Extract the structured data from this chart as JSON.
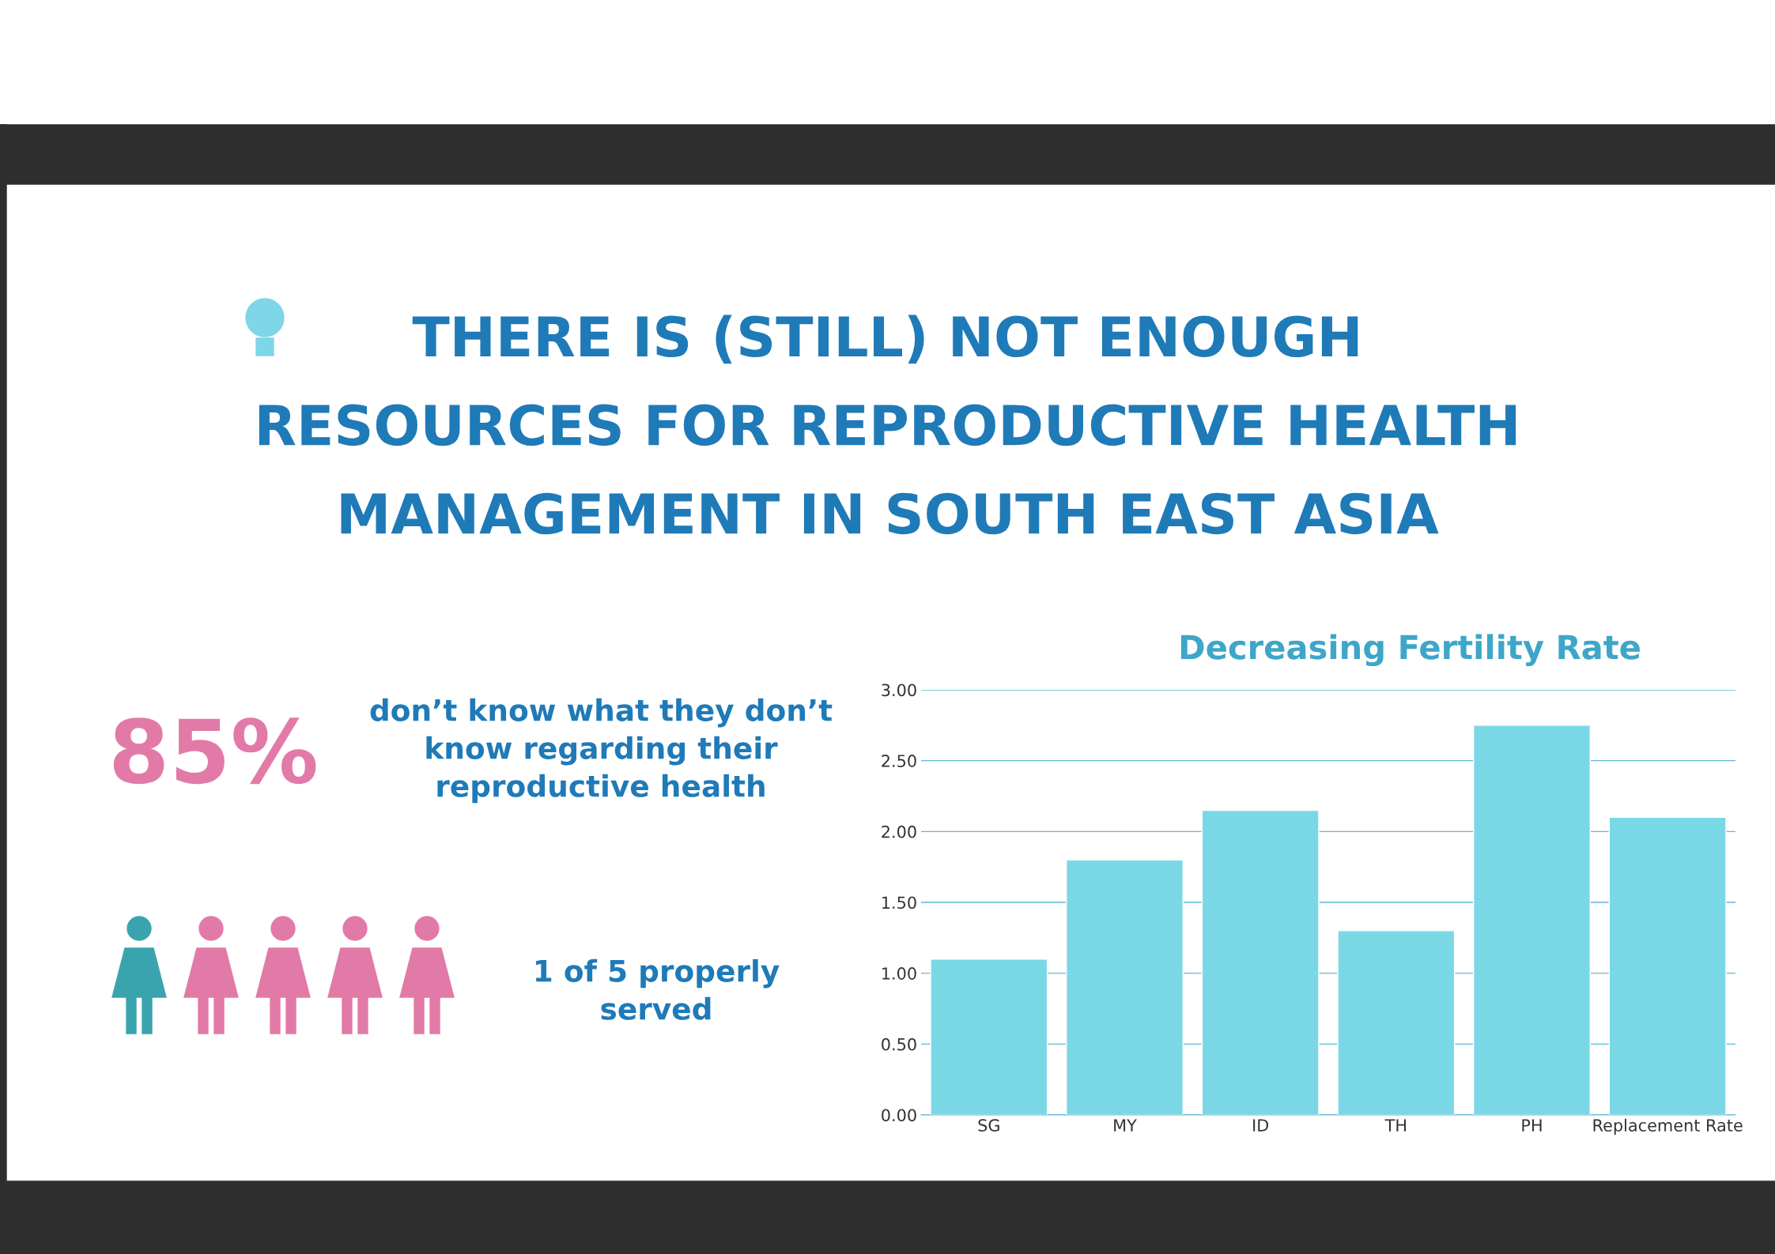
{
  "chart_data": [
    {
      "type": "other",
      "title": "THERE IS (STILL) NOT ENOUGH\nRESOURCES FOR REPRODUCTIVE HEALTH\nMANAGEMENT IN SOUTH EAST ASIA",
      "annotations": [
        "85%",
        "don’t know what they don’t\nknow regarding their\nreproductive health",
        "1 of 5 properly\nserved"
      ]
    },
    {
      "type": "bar",
      "title": "Decreasing Fertility Rate",
      "categories": [
        "SG",
        "MY",
        "ID",
        "TH",
        "PH",
        "Replacement Rate"
      ],
      "values": [
        1.1,
        1.8,
        2.15,
        1.3,
        2.75,
        2.1
      ],
      "color": "#7ad8e6",
      "ylim": [
        0,
        3
      ],
      "yticks": [
        {
          "value": 0,
          "label": "0.00"
        },
        {
          "value": 0.5,
          "label": "0.50"
        },
        {
          "value": 1,
          "label": "1.00"
        },
        {
          "value": 1.5,
          "label": "1.50"
        },
        {
          "value": 2,
          "label": "2.00"
        },
        {
          "value": 2.5,
          "label": "2.50"
        },
        {
          "value": 3,
          "label": "3.00"
        }
      ],
      "grid": "y"
    }
  ]
}
